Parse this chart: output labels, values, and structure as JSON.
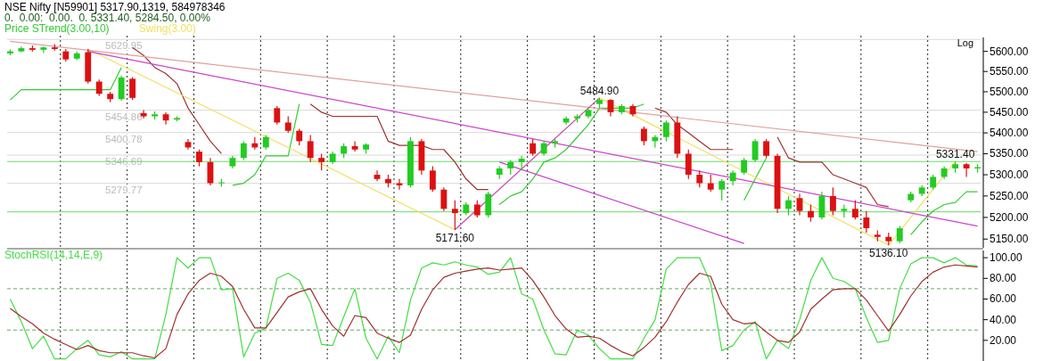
{
  "chart_data": [
    {
      "type": "candlestick",
      "title": "NSE Nifty [N59901] 5317.90,1319, 584978346",
      "subtitle": "0.  0.00:  0.00.  0. 5331.40, 5284.50, 0.00%",
      "categories": [
        null,
        null,
        null,
        null,
        null,
        null,
        null,
        null,
        null,
        null,
        null,
        null,
        null,
        null,
        null,
        null,
        null,
        null,
        null,
        null,
        null,
        null,
        null,
        null,
        null,
        null,
        null,
        null,
        null,
        null,
        null,
        null,
        null,
        null,
        null,
        null,
        null,
        null,
        null,
        null,
        null,
        null,
        null,
        null,
        null,
        null,
        null,
        null,
        null,
        null,
        null,
        null,
        null,
        null,
        null,
        null,
        null,
        null,
        null,
        null,
        null,
        null,
        null,
        null,
        null,
        null,
        null,
        null,
        null,
        null,
        null,
        null,
        null,
        null,
        null,
        null,
        null,
        null,
        null,
        null,
        null,
        null,
        null,
        null,
        null,
        null,
        null,
        null
      ],
      "ohlc": [
        [
          5595,
          5605,
          5590,
          5600
        ],
        [
          5600,
          5612,
          5598,
          5608
        ],
        [
          5608,
          5615,
          5600,
          5604
        ],
        [
          5604,
          5612,
          5596,
          5610
        ],
        [
          5610,
          5618,
          5602,
          5606
        ],
        [
          5600,
          5606,
          5575,
          5580
        ],
        [
          5582,
          5600,
          5578,
          5595
        ],
        [
          5598,
          5606,
          5520,
          5525
        ],
        [
          5525,
          5530,
          5490,
          5495
        ],
        [
          5495,
          5500,
          5475,
          5482
        ],
        [
          5482,
          5540,
          5478,
          5535
        ],
        [
          5532,
          5536,
          5480,
          5485
        ],
        [
          5448,
          5455,
          5435,
          5440
        ],
        [
          5440,
          5452,
          5432,
          5445
        ],
        [
          5445,
          5450,
          5420,
          5430
        ],
        [
          5432,
          5440,
          5428,
          5436
        ],
        [
          5378,
          5385,
          5360,
          5365
        ],
        [
          5355,
          5360,
          5320,
          5330
        ],
        [
          5330,
          5340,
          5275,
          5280
        ],
        [
          5280,
          5290,
          5272,
          5282
        ],
        [
          5320,
          5345,
          5315,
          5340
        ],
        [
          5340,
          5380,
          5335,
          5375
        ],
        [
          5375,
          5390,
          5360,
          5365
        ],
        [
          5365,
          5395,
          5360,
          5390
        ],
        [
          5460,
          5465,
          5420,
          5425
        ],
        [
          5425,
          5440,
          5400,
          5405
        ],
        [
          5405,
          5410,
          5370,
          5380
        ],
        [
          5380,
          5395,
          5330,
          5340
        ],
        [
          5340,
          5350,
          5310,
          5330
        ],
        [
          5330,
          5355,
          5325,
          5350
        ],
        [
          5350,
          5375,
          5340,
          5368
        ],
        [
          5368,
          5380,
          5355,
          5360
        ],
        [
          5360,
          5375,
          5350,
          5372
        ],
        [
          5300,
          5310,
          5285,
          5290
        ],
        [
          5290,
          5300,
          5270,
          5280
        ],
        [
          5280,
          5290,
          5265,
          5275
        ],
        [
          5275,
          5390,
          5270,
          5380
        ],
        [
          5380,
          5385,
          5300,
          5310
        ],
        [
          5310,
          5320,
          5260,
          5265
        ],
        [
          5265,
          5270,
          5215,
          5220
        ],
        [
          5220,
          5240,
          5171.6,
          5210
        ],
        [
          5210,
          5235,
          5205,
          5230
        ],
        [
          5230,
          5240,
          5200,
          5205
        ],
        [
          5205,
          5260,
          5200,
          5255
        ],
        [
          5300,
          5320,
          5290,
          5315
        ],
        [
          5315,
          5335,
          5300,
          5330
        ],
        [
          5330,
          5345,
          5310,
          5338
        ],
        [
          5375,
          5385,
          5345,
          5350
        ],
        [
          5350,
          5380,
          5345,
          5375
        ],
        [
          5375,
          5385,
          5365,
          5380
        ],
        [
          5425,
          5440,
          5420,
          5435
        ],
        [
          5435,
          5445,
          5425,
          5440
        ],
        [
          5440,
          5460,
          5435,
          5455
        ],
        [
          5470,
          5484.9,
          5460,
          5480
        ],
        [
          5480,
          5482,
          5440,
          5450
        ],
        [
          5450,
          5470,
          5445,
          5465
        ],
        [
          5465,
          5470,
          5440,
          5445
        ],
        [
          5410,
          5415,
          5370,
          5380
        ],
        [
          5380,
          5395,
          5365,
          5390
        ],
        [
          5390,
          5430,
          5380,
          5425
        ],
        [
          5425,
          5440,
          5340,
          5350
        ],
        [
          5350,
          5360,
          5290,
          5300
        ],
        [
          5300,
          5310,
          5270,
          5280
        ],
        [
          5280,
          5300,
          5260,
          5265
        ],
        [
          5265,
          5290,
          5240,
          5285
        ],
        [
          5285,
          5310,
          5275,
          5305
        ],
        [
          5305,
          5340,
          5300,
          5335
        ],
        [
          5335,
          5385,
          5330,
          5380
        ],
        [
          5380,
          5385,
          5340,
          5345
        ],
        [
          5345,
          5350,
          5210,
          5220
        ],
        [
          5220,
          5250,
          5205,
          5240
        ],
        [
          5245,
          5255,
          5205,
          5215
        ],
        [
          5215,
          5230,
          5190,
          5200
        ],
        [
          5200,
          5260,
          5195,
          5250
        ],
        [
          5250,
          5270,
          5205,
          5215
        ],
        [
          5215,
          5230,
          5200,
          5220
        ],
        [
          5220,
          5240,
          5195,
          5200
        ],
        [
          5200,
          5215,
          5165,
          5175
        ],
        [
          5160,
          5170,
          5145,
          5155
        ],
        [
          5155,
          5165,
          5136.1,
          5145
        ],
        [
          5145,
          5180,
          5140,
          5175
        ],
        [
          5240,
          5260,
          5235,
          5255
        ],
        [
          5255,
          5275,
          5250,
          5270
        ],
        [
          5270,
          5300,
          5265,
          5295
        ],
        [
          5295,
          5320,
          5290,
          5315
        ],
        [
          5315,
          5331.4,
          5305,
          5325
        ],
        [
          5325,
          5328,
          5295,
          5315
        ],
        [
          5315,
          5325,
          5305,
          5318
        ]
      ],
      "series": [
        {
          "type": "line",
          "name": "Price STrend(3.00,10)",
          "color": "#33cc33",
          "values": [
            5480,
            5505,
            5505,
            5505,
            5505,
            5505,
            5505,
            5505,
            5505,
            5505,
            5560,
            null,
            null,
            null,
            null,
            null,
            null,
            null,
            null,
            null,
            5275,
            5280,
            5300,
            5345,
            5345,
            5345,
            5470,
            null,
            null,
            null,
            null,
            null,
            null,
            null,
            null,
            null,
            null,
            null,
            null,
            null,
            null,
            null,
            null,
            null,
            5230,
            5250,
            5260,
            5290,
            5330,
            5340,
            5360,
            5390,
            5420,
            5460,
            5460,
            5460,
            5460,
            5470,
            null,
            null,
            null,
            null,
            null,
            null,
            null,
            null,
            5240,
            5290,
            5340,
            null,
            null,
            null,
            null,
            null,
            null,
            null,
            null,
            null,
            null,
            null,
            null,
            5160,
            5190,
            5215,
            5230,
            5235,
            5260,
            5260
          ]
        },
        {
          "type": "line",
          "color": "#a03030",
          "values": [
            null,
            null,
            null,
            null,
            null,
            null,
            null,
            null,
            null,
            null,
            null,
            5610,
            5590,
            5560,
            5545,
            5520,
            5460,
            5420,
            5380,
            5350,
            null,
            null,
            null,
            null,
            null,
            null,
            null,
            5470,
            5450,
            5440,
            5440,
            5440,
            5440,
            5440,
            5380,
            5370,
            5370,
            5370,
            5360,
            5360,
            5330,
            5290,
            5265,
            5265,
            null,
            null,
            null,
            null,
            null,
            null,
            null,
            null,
            null,
            null,
            null,
            null,
            null,
            null,
            5460,
            5450,
            5420,
            5400,
            5380,
            5360,
            5360,
            5360,
            null,
            null,
            null,
            5390,
            5340,
            5330,
            5330,
            5330,
            5300,
            5290,
            5280,
            5270,
            5230,
            5225,
            null,
            null,
            null,
            null,
            null,
            null,
            null,
            null
          ]
        },
        {
          "type": "line",
          "name": "Swing(3.00)",
          "color": "#f0e060",
          "values": [
            null,
            null,
            null,
            null,
            null,
            null,
            null,
            5606,
            null,
            null,
            null,
            null,
            null,
            null,
            null,
            null,
            null,
            null,
            null,
            null,
            null,
            null,
            null,
            null,
            null,
            null,
            null,
            null,
            null,
            null,
            null,
            null,
            null,
            null,
            null,
            null,
            null,
            null,
            null,
            null,
            5171.6,
            null,
            null,
            null,
            null,
            null,
            null,
            null,
            null,
            null,
            null,
            null,
            null,
            5484.9,
            null,
            null,
            null,
            null,
            null,
            null,
            null,
            null,
            null,
            null,
            null,
            null,
            null,
            null,
            null,
            null,
            null,
            null,
            null,
            null,
            null,
            null,
            null,
            null,
            null,
            5136.1,
            null,
            null,
            null,
            null,
            null,
            5331.4,
            null,
            null
          ]
        },
        {
          "type": "line",
          "color": "#e0a0a0",
          "values": [
            5625,
            null,
            null,
            null,
            null,
            null,
            null,
            null,
            null,
            null,
            null,
            null,
            null,
            null,
            null,
            null,
            null,
            null,
            null,
            null,
            null,
            null,
            null,
            null,
            null,
            null,
            null,
            null,
            null,
            null,
            null,
            null,
            null,
            null,
            null,
            null,
            null,
            null,
            null,
            null,
            null,
            null,
            null,
            null,
            null,
            null,
            null,
            null,
            null,
            null,
            null,
            null,
            null,
            null,
            null,
            null,
            null,
            null,
            null,
            null,
            null,
            null,
            null,
            null,
            null,
            null,
            null,
            null,
            null,
            null,
            null,
            null,
            null,
            null,
            null,
            null,
            null,
            null,
            null,
            null,
            null,
            null,
            null,
            null,
            null,
            null,
            null,
            5355
          ]
        },
        {
          "type": "line",
          "color": "#cc44cc",
          "values": [
            null,
            null,
            null,
            null,
            null,
            null,
            null,
            5600,
            null,
            null,
            null,
            null,
            null,
            null,
            null,
            null,
            null,
            null,
            null,
            null,
            null,
            null,
            null,
            null,
            null,
            null,
            null,
            null,
            null,
            null,
            null,
            null,
            null,
            null,
            null,
            null,
            null,
            null,
            null,
            null,
            null,
            null,
            null,
            null,
            null,
            null,
            null,
            null,
            null,
            null,
            null,
            null,
            null,
            null,
            null,
            null,
            null,
            null,
            null,
            null,
            null,
            null,
            null,
            null,
            null,
            null,
            null,
            null,
            null,
            null,
            null,
            null,
            null,
            null,
            null,
            null,
            null,
            null,
            null,
            null,
            null,
            null,
            null,
            null,
            null,
            null,
            null,
            5180
          ]
        },
        {
          "type": "line",
          "color": "#cc44cc",
          "values": [
            null,
            null,
            null,
            null,
            null,
            null,
            null,
            null,
            null,
            null,
            null,
            null,
            null,
            null,
            null,
            null,
            null,
            null,
            null,
            null,
            null,
            null,
            null,
            null,
            null,
            null,
            null,
            null,
            null,
            null,
            null,
            null,
            null,
            null,
            null,
            null,
            null,
            null,
            null,
            null,
            5171.6,
            null,
            null,
            null,
            null,
            null,
            null,
            null,
            null,
            null,
            null,
            null,
            null,
            5484.9,
            null,
            null,
            null,
            null,
            null,
            null,
            null,
            null,
            null,
            null,
            null,
            null,
            null,
            null,
            null,
            null,
            null,
            null,
            null,
            null,
            null,
            null,
            null,
            null,
            null,
            null,
            null,
            null,
            null,
            null,
            null,
            null,
            null,
            null
          ]
        },
        {
          "type": "line",
          "color": "#cc44cc",
          "values": [
            null,
            null,
            null,
            null,
            null,
            null,
            null,
            null,
            null,
            null,
            null,
            null,
            null,
            null,
            null,
            null,
            null,
            null,
            null,
            null,
            null,
            null,
            null,
            null,
            null,
            null,
            null,
            null,
            null,
            null,
            null,
            null,
            null,
            null,
            null,
            null,
            null,
            null,
            null,
            null,
            null,
            null,
            null,
            null,
            5330,
            null,
            null,
            null,
            null,
            null,
            null,
            null,
            null,
            null,
            null,
            null,
            null,
            null,
            null,
            null,
            null,
            null,
            null,
            null,
            null,
            null,
            5140,
            null,
            null,
            null,
            null,
            null,
            null,
            null,
            null,
            null,
            null,
            null,
            null,
            null,
            null,
            null,
            null,
            null,
            null,
            null,
            null,
            null
          ]
        }
      ],
      "ylim": [
        5130,
        5635
      ],
      "yticks": [
        {
          "value": 5150,
          "label": "5150.00"
        },
        {
          "value": 5200,
          "label": "5200.00"
        },
        {
          "value": 5250,
          "label": "5250.00"
        },
        {
          "value": 5300,
          "label": "5300.00"
        },
        {
          "value": 5350,
          "label": "5350.00"
        },
        {
          "value": 5400,
          "label": "5400.00"
        },
        {
          "value": 5450,
          "label": "5450.00"
        },
        {
          "value": 5500,
          "label": "5500.00"
        },
        {
          "value": 5550,
          "label": "5550.00"
        },
        {
          "value": 5600,
          "label": "5600.00"
        }
      ],
      "log": true,
      "tick_labels": "y",
      "legend": "top left",
      "ref_lines": [
        {
          "axis": "y",
          "value": 5629.95,
          "label": "5629.95",
          "color": "#d8d8d8"
        },
        {
          "axis": "y",
          "value": 5454.86,
          "label": "5454.86",
          "color": "#d8d8d8"
        },
        {
          "axis": "y",
          "value": 5400.78,
          "label": "5400.78",
          "color": "#d8d8d8"
        },
        {
          "axis": "y",
          "value": 5346.69,
          "label": "5346.69",
          "color": "#d8d8d8"
        },
        {
          "axis": "y",
          "value": 5279.77,
          "label": "5279.77",
          "color": "#d8d8d8"
        },
        {
          "axis": "y",
          "value": 5331.4,
          "color": "#66dd66"
        },
        {
          "axis": "y",
          "value": 5213,
          "color": "#66dd66"
        }
      ],
      "annotations": [
        "Log",
        {
          "text": "5484.90",
          "y": 5484.9
        },
        {
          "text": "5171.60",
          "y": 5171.6
        },
        {
          "text": "5136.10",
          "y": 5136.1
        },
        {
          "text": "5331.40",
          "y": 5331.4
        }
      ]
    },
    {
      "type": "line",
      "categories": [
        null,
        null,
        null,
        null,
        null,
        null,
        null,
        null,
        null,
        null,
        null,
        null,
        null,
        null,
        null,
        null,
        null,
        null,
        null,
        null,
        null,
        null,
        null,
        null,
        null,
        null,
        null,
        null,
        null,
        null,
        null,
        null,
        null,
        null,
        null,
        null,
        null,
        null,
        null,
        null,
        null,
        null,
        null,
        null,
        null,
        null,
        null,
        null,
        null,
        null,
        null,
        null,
        null,
        null,
        null,
        null,
        null,
        null,
        null,
        null,
        null,
        null,
        null,
        null,
        null,
        null,
        null,
        null,
        null,
        null,
        null,
        null,
        null,
        null,
        null,
        null,
        null,
        null,
        null,
        null,
        null,
        null,
        null,
        null,
        null,
        null,
        null,
        null
      ],
      "series": [
        {
          "name": "StochRSI(14,14,E,9)",
          "color": "#44dd44",
          "values": [
            60,
            38,
            12,
            24,
            2,
            2,
            12,
            20,
            6,
            4,
            9,
            2,
            2,
            2,
            45,
            100,
            90,
            100,
            100,
            69,
            70,
            4,
            27,
            32,
            80,
            85,
            78,
            57,
            16,
            15,
            43,
            70,
            22,
            2,
            24,
            8,
            59,
            90,
            95,
            93,
            96,
            93,
            91,
            84,
            86,
            100,
            65,
            60,
            30,
            7,
            6,
            30,
            25,
            12,
            2,
            2,
            2,
            22,
            40,
            89,
            100,
            100,
            100,
            75,
            10,
            15,
            30,
            38,
            2,
            20,
            12,
            40,
            78,
            100,
            80,
            77,
            70,
            42,
            18,
            20,
            70,
            94,
            100,
            100,
            95,
            100,
            93,
            92
          ]
        },
        {
          "color": "#a03030",
          "values": [
            51,
            43,
            36,
            27,
            21,
            16,
            11,
            15,
            10,
            8,
            8,
            8,
            5,
            3,
            12,
            45,
            65,
            78,
            85,
            82,
            72,
            50,
            32,
            32,
            47,
            62,
            67,
            70,
            50,
            34,
            24,
            44,
            42,
            27,
            22,
            18,
            25,
            50,
            69,
            81,
            85,
            87,
            89,
            90,
            88,
            89,
            90,
            78,
            62,
            44,
            31,
            23,
            24,
            22,
            15,
            9,
            5,
            13,
            23,
            38,
            57,
            74,
            85,
            82,
            55,
            40,
            36,
            37,
            28,
            20,
            18,
            28,
            50,
            60,
            69,
            70,
            70,
            59,
            44,
            29,
            45,
            63,
            77,
            86,
            91,
            93,
            92,
            91
          ]
        }
      ],
      "ylim": [
        0,
        107
      ],
      "yticks": [
        {
          "value": 20,
          "label": "20.00"
        },
        {
          "value": 40,
          "label": "40.00"
        },
        {
          "value": 60,
          "label": "60.00"
        },
        {
          "value": 80,
          "label": "80.00"
        },
        {
          "value": 100,
          "label": "100.00"
        }
      ],
      "tick_labels": "y",
      "legend": "top left",
      "ref_lines": [
        {
          "axis": "y",
          "value": 70,
          "color": "#66aa66",
          "line_style": "dashed"
        },
        {
          "axis": "y",
          "value": 30,
          "color": "#66aa66",
          "line_style": "dashed"
        }
      ]
    }
  ]
}
